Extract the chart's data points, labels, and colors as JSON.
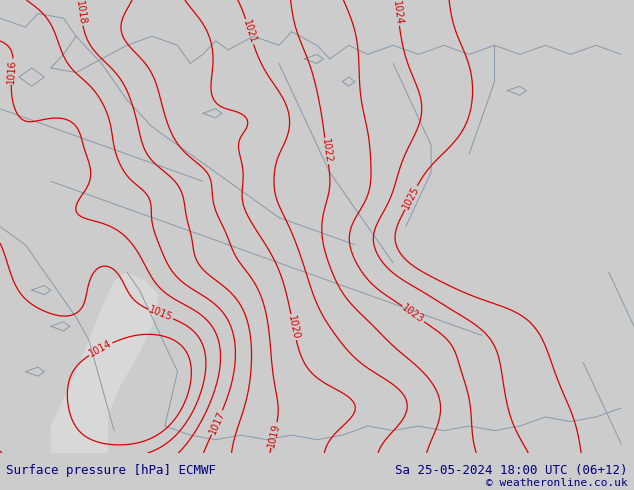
{
  "title_left": "Surface pressure [hPa] ECMWF",
  "title_right": "Sa 25-05-2024 18:00 UTC (06+12)",
  "copyright": "© weatheronline.co.uk",
  "map_bg": "#b8e87c",
  "sea_color": "#d8d8d8",
  "contour_color": "#dd0000",
  "border_color": "#8899aa",
  "footer_bg": "#cccccc",
  "footer_text_color": "#000080",
  "figsize": [
    6.34,
    4.9
  ],
  "dpi": 100,
  "pressure_levels": [
    1014,
    1015,
    1016,
    1017,
    1018,
    1019,
    1020,
    1021,
    1022,
    1023,
    1024,
    1025
  ]
}
